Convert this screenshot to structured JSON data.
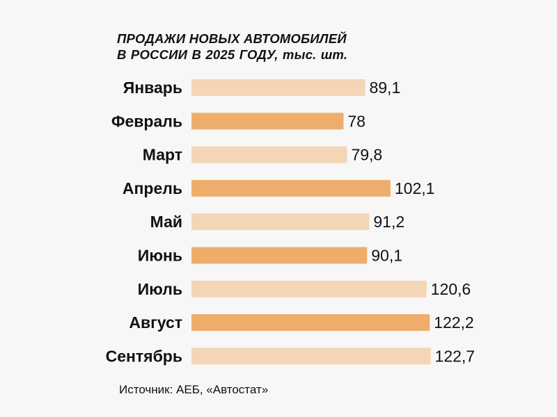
{
  "title": {
    "line1": "ПРОДАЖИ НОВЫХ АВТОМОБИЛЕЙ",
    "line2": "В РОССИИ В 2025 ГОДУ, тыс. шт."
  },
  "source": "Источник: АЕБ, «Автостат»",
  "colors": {
    "background": "#f7f7f7",
    "bar_light": "#f4d5b6",
    "bar_dark": "#efad6c",
    "text": "#111111"
  },
  "chart_data": {
    "type": "bar",
    "orientation": "horizontal",
    "title": "ПРОДАЖИ НОВЫХ АВТОМОБИЛЕЙ В РОССИИ В 2025 ГОДУ, тыс. шт.",
    "categories": [
      "Январь",
      "Февраль",
      "Март",
      "Апрель",
      "Май",
      "Июнь",
      "Июль",
      "Август",
      "Сентябрь"
    ],
    "values": [
      89.1,
      78,
      79.8,
      102.1,
      91.2,
      90.1,
      120.6,
      122.2,
      122.7
    ],
    "value_labels": [
      "89,1",
      "78",
      "79,8",
      "102,1",
      "91,2",
      "90,1",
      "120,6",
      "122,2",
      "122,7"
    ],
    "bar_shades": [
      "light",
      "dark",
      "light",
      "dark",
      "light",
      "dark",
      "light",
      "dark",
      "light"
    ],
    "xlabel": "",
    "ylabel": "",
    "grid": false,
    "legend": "none"
  }
}
